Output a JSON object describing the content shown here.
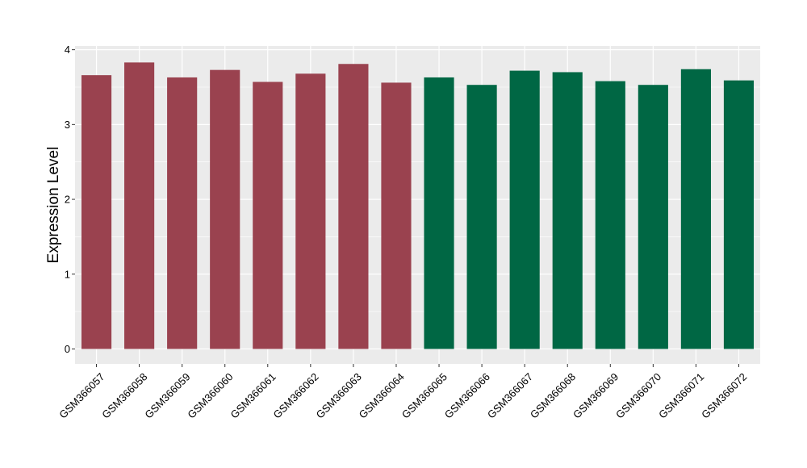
{
  "chart_data": {
    "type": "bar",
    "title": "",
    "xlabel": "",
    "ylabel": "Expression Level",
    "ylim": [
      -0.2,
      4.05
    ],
    "yticks": [
      0,
      1,
      2,
      3,
      4
    ],
    "grid": true,
    "legend": "none",
    "categories": [
      "GSM366057",
      "GSM366058",
      "GSM366059",
      "GSM366060",
      "GSM366061",
      "GSM366062",
      "GSM366063",
      "GSM366064",
      "GSM366065",
      "GSM366066",
      "GSM366067",
      "GSM366068",
      "GSM366069",
      "GSM366070",
      "GSM366071",
      "GSM366072"
    ],
    "values": [
      3.66,
      3.83,
      3.63,
      3.73,
      3.57,
      3.68,
      3.81,
      3.56,
      3.63,
      3.53,
      3.72,
      3.7,
      3.58,
      3.53,
      3.74,
      3.59
    ],
    "group_colors": [
      "#9A424F",
      "#9A424F",
      "#9A424F",
      "#9A424F",
      "#9A424F",
      "#9A424F",
      "#9A424F",
      "#9A424F",
      "#006744",
      "#006744",
      "#006744",
      "#006744",
      "#006744",
      "#006744",
      "#006744",
      "#006744"
    ],
    "panel_background": "#EBEBEB",
    "gridline_color": "#FFFFFF"
  }
}
